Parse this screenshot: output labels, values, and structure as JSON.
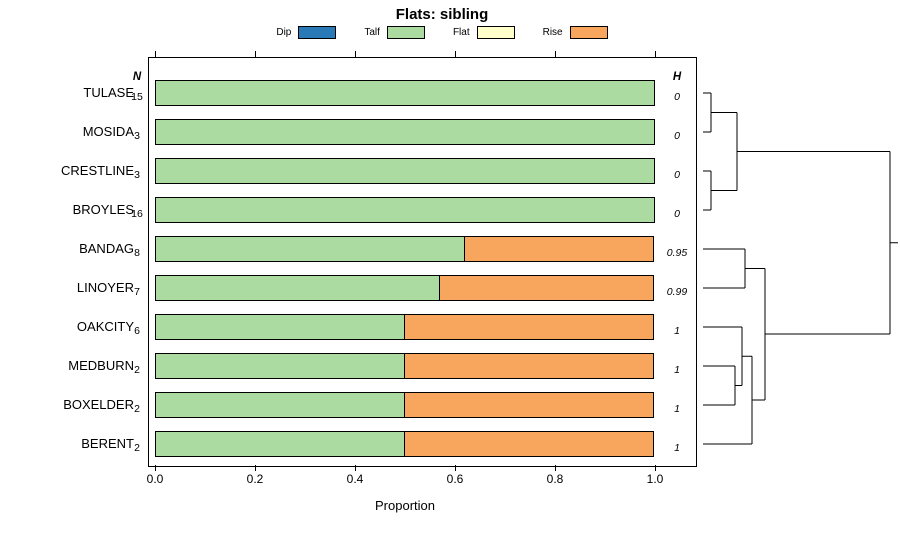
{
  "title": "Flats: sibling",
  "legend": [
    {
      "label": "Dip",
      "color": "#2b7ab8"
    },
    {
      "label": "Talf",
      "color": "#abdba1"
    },
    {
      "label": "Flat",
      "color": "#ffffcc"
    },
    {
      "label": "Rise",
      "color": "#f8a55e"
    }
  ],
  "columns": {
    "n_header": "N",
    "h_header": "H"
  },
  "axis": {
    "label": "Proportion",
    "ticks": [
      "0.0",
      "0.2",
      "0.4",
      "0.6",
      "0.8",
      "1.0"
    ],
    "tick_values": [
      0,
      0.2,
      0.4,
      0.6,
      0.8,
      1.0
    ]
  },
  "chart_data": {
    "type": "bar",
    "orientation": "horizontal",
    "stacked": true,
    "title": "Flats: sibling",
    "xlabel": "Proportion",
    "xlim": [
      0,
      1
    ],
    "grid": false,
    "legend_position": "top",
    "categories": [
      "TULASE",
      "MOSIDA",
      "CRESTLINE",
      "BROYLES",
      "BANDAG",
      "LINOYER",
      "OAKCITY",
      "MEDBURN",
      "BOXELDER",
      "BERENT"
    ],
    "n": [
      15,
      3,
      3,
      16,
      8,
      7,
      6,
      2,
      2,
      2
    ],
    "h": [
      "0",
      "0",
      "0",
      "0",
      "0.95",
      "0.99",
      "1",
      "1",
      "1",
      "1"
    ],
    "series": [
      {
        "name": "Dip",
        "color": "#2b7ab8",
        "values": [
          0,
          0,
          0,
          0,
          0,
          0,
          0,
          0,
          0,
          0
        ]
      },
      {
        "name": "Talf",
        "color": "#abdba1",
        "values": [
          1,
          1,
          1,
          1,
          0.62,
          0.57,
          0.5,
          0.5,
          0.5,
          0.5
        ]
      },
      {
        "name": "Flat",
        "color": "#ffffcc",
        "values": [
          0,
          0,
          0,
          0,
          0,
          0,
          0,
          0,
          0,
          0
        ]
      },
      {
        "name": "Rise",
        "color": "#f8a55e",
        "values": [
          0,
          0,
          0,
          0,
          0.38,
          0.43,
          0.5,
          0.5,
          0.5,
          0.5
        ]
      }
    ],
    "dendrogram": {
      "note": "right-side cluster tree; segments are [x1,y1,x2,y2] in local px, leaves at left aligned to bar rows",
      "segments": [
        [
          3,
          36,
          11,
          36
        ],
        [
          3,
          75,
          11,
          75
        ],
        [
          11,
          36,
          11,
          75
        ],
        [
          3,
          114,
          11,
          114
        ],
        [
          3,
          153,
          11,
          153
        ],
        [
          11,
          114,
          11,
          153
        ],
        [
          11,
          55.5,
          37,
          55.5
        ],
        [
          11,
          133.5,
          37,
          133.5
        ],
        [
          37,
          55.5,
          37,
          133.5
        ],
        [
          37,
          94.5,
          190,
          94.5
        ],
        [
          3,
          192,
          45,
          192
        ],
        [
          3,
          231,
          45,
          231
        ],
        [
          45,
          192,
          45,
          231
        ],
        [
          3,
          309,
          35,
          309
        ],
        [
          3,
          348,
          35,
          348
        ],
        [
          35,
          309,
          35,
          348
        ],
        [
          3,
          270,
          42,
          270
        ],
        [
          35,
          328.5,
          42,
          328.5
        ],
        [
          42,
          270,
          42,
          328.5
        ],
        [
          3,
          387,
          52,
          387
        ],
        [
          42,
          299.25,
          52,
          299.25
        ],
        [
          52,
          299.25,
          52,
          387
        ],
        [
          45,
          211.5,
          65,
          211.5
        ],
        [
          52,
          343,
          65,
          343
        ],
        [
          65,
          211.5,
          65,
          343
        ],
        [
          65,
          277,
          190,
          277
        ],
        [
          190,
          94.5,
          190,
          277
        ],
        [
          190,
          185.75,
          198,
          185.75
        ]
      ]
    }
  }
}
